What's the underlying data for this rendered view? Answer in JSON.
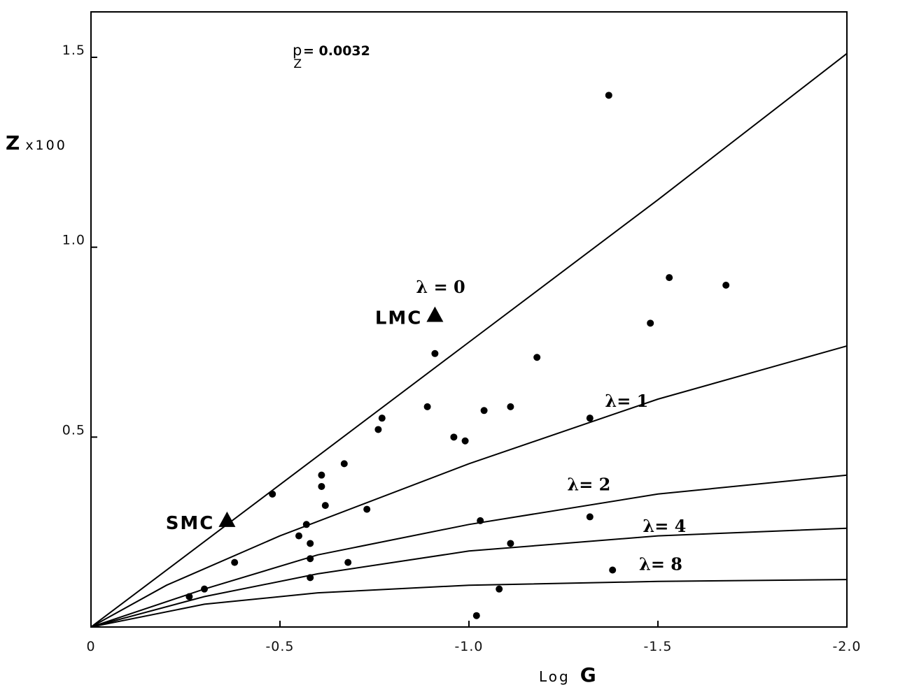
{
  "chart_data": {
    "type": "scatter",
    "xlabel": {
      "prefix": "Log",
      "symbol": "G"
    },
    "ylabel": {
      "symbol": "Z",
      "suffix": "x100"
    },
    "annotation": {
      "base": "p",
      "sub": "Z",
      "rest": "= 0.0032"
    },
    "xlim": [
      0,
      -2.0
    ],
    "ylim": [
      0,
      1.5
    ],
    "x_ticks": [
      {
        "value": 0,
        "label": "0"
      },
      {
        "value": -0.5,
        "label": "-0.5"
      },
      {
        "value": -1.0,
        "label": "-1.0"
      },
      {
        "value": -1.5,
        "label": "-1.5"
      },
      {
        "value": -2.0,
        "label": "-2.0"
      }
    ],
    "y_ticks": [
      {
        "value": 0.5,
        "label": "0.5"
      },
      {
        "value": 1.0,
        "label": "1.0"
      },
      {
        "value": 1.5,
        "label": "1.5"
      }
    ],
    "points": [
      {
        "x": -0.26,
        "y": 0.08
      },
      {
        "x": -0.3,
        "y": 0.1
      },
      {
        "x": -0.38,
        "y": 0.17
      },
      {
        "x": -0.48,
        "y": 0.35
      },
      {
        "x": -0.55,
        "y": 0.24
      },
      {
        "x": -0.57,
        "y": 0.27
      },
      {
        "x": -0.58,
        "y": 0.22
      },
      {
        "x": -0.58,
        "y": 0.18
      },
      {
        "x": -0.58,
        "y": 0.13
      },
      {
        "x": -0.61,
        "y": 0.4
      },
      {
        "x": -0.61,
        "y": 0.37
      },
      {
        "x": -0.62,
        "y": 0.32
      },
      {
        "x": -0.67,
        "y": 0.43
      },
      {
        "x": -0.68,
        "y": 0.17
      },
      {
        "x": -0.73,
        "y": 0.31
      },
      {
        "x": -0.76,
        "y": 0.52
      },
      {
        "x": -0.77,
        "y": 0.55
      },
      {
        "x": -0.89,
        "y": 0.58
      },
      {
        "x": -0.91,
        "y": 0.72
      },
      {
        "x": -0.96,
        "y": 0.5
      },
      {
        "x": -0.99,
        "y": 0.49
      },
      {
        "x": -1.02,
        "y": 0.03
      },
      {
        "x": -1.03,
        "y": 0.28
      },
      {
        "x": -1.04,
        "y": 0.57
      },
      {
        "x": -1.08,
        "y": 0.1
      },
      {
        "x": -1.11,
        "y": 0.58
      },
      {
        "x": -1.11,
        "y": 0.22
      },
      {
        "x": -1.18,
        "y": 0.71
      },
      {
        "x": -1.32,
        "y": 0.55
      },
      {
        "x": -1.32,
        "y": 0.29
      },
      {
        "x": -1.37,
        "y": 1.4
      },
      {
        "x": -1.38,
        "y": 0.15
      },
      {
        "x": -1.48,
        "y": 0.8
      },
      {
        "x": -1.53,
        "y": 0.92
      },
      {
        "x": -1.68,
        "y": 0.9
      }
    ],
    "galaxies": [
      {
        "name": "LMC",
        "x": -0.91,
        "y": 0.82
      },
      {
        "name": "SMC",
        "x": -0.36,
        "y": 0.28
      }
    ],
    "curves": [
      {
        "name": "λ = 0",
        "label_at": [
          -0.86,
          0.88
        ],
        "points": [
          [
            0,
            0
          ],
          [
            -0.5,
            0.375
          ],
          [
            -1.0,
            0.75
          ],
          [
            -1.5,
            1.125
          ],
          [
            -2.0,
            1.51
          ]
        ]
      },
      {
        "name": "λ= 1",
        "label_at": [
          -1.36,
          0.58
        ],
        "points": [
          [
            0,
            0
          ],
          [
            -0.2,
            0.11
          ],
          [
            -0.5,
            0.24
          ],
          [
            -1.0,
            0.43
          ],
          [
            -1.5,
            0.6
          ],
          [
            -2.0,
            0.74
          ]
        ]
      },
      {
        "name": "λ= 2",
        "label_at": [
          -1.26,
          0.36
        ],
        "points": [
          [
            0,
            0
          ],
          [
            -0.3,
            0.1
          ],
          [
            -0.6,
            0.19
          ],
          [
            -1.0,
            0.27
          ],
          [
            -1.5,
            0.35
          ],
          [
            -2.0,
            0.4
          ]
        ]
      },
      {
        "name": "λ= 4",
        "label_at": [
          -1.46,
          0.25
        ],
        "points": [
          [
            0,
            0
          ],
          [
            -0.3,
            0.08
          ],
          [
            -0.6,
            0.14
          ],
          [
            -1.0,
            0.2
          ],
          [
            -1.5,
            0.24
          ],
          [
            -2.0,
            0.26
          ]
        ]
      },
      {
        "name": "λ= 8",
        "label_at": [
          -1.45,
          0.15
        ],
        "points": [
          [
            0,
            0
          ],
          [
            -0.3,
            0.06
          ],
          [
            -0.6,
            0.09
          ],
          [
            -1.0,
            0.11
          ],
          [
            -1.5,
            0.12
          ],
          [
            -2.0,
            0.125
          ]
        ]
      }
    ]
  }
}
